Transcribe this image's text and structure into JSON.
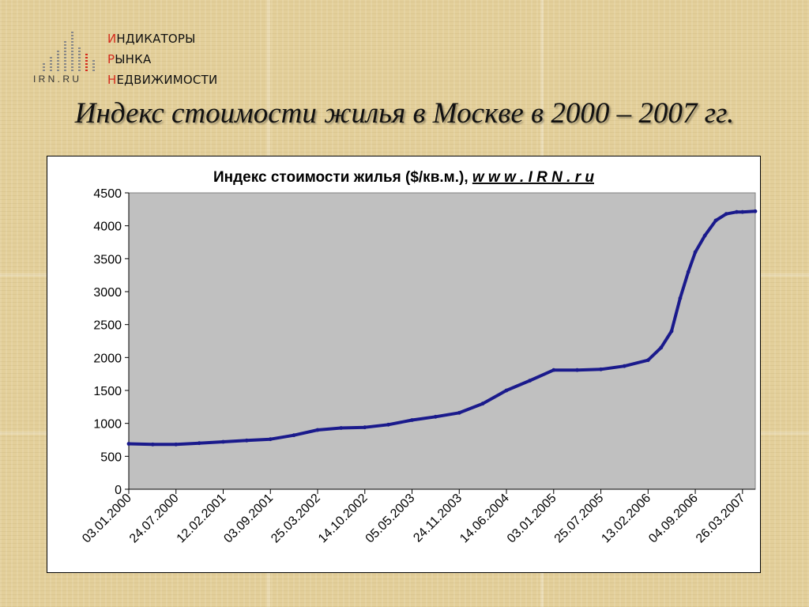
{
  "logo": {
    "wordmark": "I R N . R U",
    "lines": [
      {
        "first": "И",
        "rest": "НДИКАТОРЫ"
      },
      {
        "first": "Р",
        "rest": "ЫНКА"
      },
      {
        "first": "Н",
        "rest": "ЕДВИЖИМОСТИ"
      }
    ]
  },
  "slide_title": "Индекс стоимости жилья в Москве в 2000 – 2007 гг.",
  "colors": {
    "line": "#1a1a8c",
    "plot_bg": "#c0c0c0",
    "accent": "#d42b1e"
  },
  "chart_data": {
    "type": "line",
    "title": "Индекс стоимости жилья ($/кв.м.), ",
    "title_link": "w w w . I R N . r u",
    "xlabel": "",
    "ylabel": "",
    "ylim": [
      0,
      4500
    ],
    "y_ticks": [
      0,
      500,
      1000,
      1500,
      2000,
      2500,
      3000,
      3500,
      4000,
      4500
    ],
    "x_tick_labels": [
      "03.01.2000",
      "24.07.2000",
      "12.02.2001",
      "03.09.2001",
      "25.03.2002",
      "14.10.2002",
      "05.05.2003",
      "24.11.2003",
      "14.06.2004",
      "03.01.2005",
      "25.07.2005",
      "13.02.2006",
      "04.09.2006",
      "26.03.2007"
    ],
    "grid": false,
    "legend": "none",
    "series": [
      {
        "x": [
          "2000-01-03",
          "2000-04-15",
          "2000-07-24",
          "2000-11-01",
          "2001-02-12",
          "2001-05-24",
          "2001-09-03",
          "2001-12-13",
          "2002-03-25",
          "2002-07-04",
          "2002-10-14",
          "2003-01-23",
          "2003-05-05",
          "2003-08-14",
          "2003-11-24",
          "2004-03-04",
          "2004-06-14",
          "2004-09-23",
          "2005-01-03",
          "2005-04-14",
          "2005-07-25",
          "2005-11-03",
          "2006-02-13",
          "2006-04-10",
          "2006-05-25",
          "2006-07-01",
          "2006-08-05",
          "2006-09-04",
          "2006-10-15",
          "2006-12-01",
          "2007-01-15",
          "2007-03-01",
          "2007-03-26",
          "2007-05-20"
        ],
        "y": [
          690,
          680,
          680,
          700,
          720,
          740,
          760,
          820,
          900,
          930,
          940,
          980,
          1050,
          1100,
          1160,
          1300,
          1500,
          1650,
          1810,
          1810,
          1820,
          1870,
          1960,
          2150,
          2400,
          2900,
          3300,
          3600,
          3850,
          4080,
          4180,
          4210,
          4210,
          4220
        ]
      }
    ]
  }
}
